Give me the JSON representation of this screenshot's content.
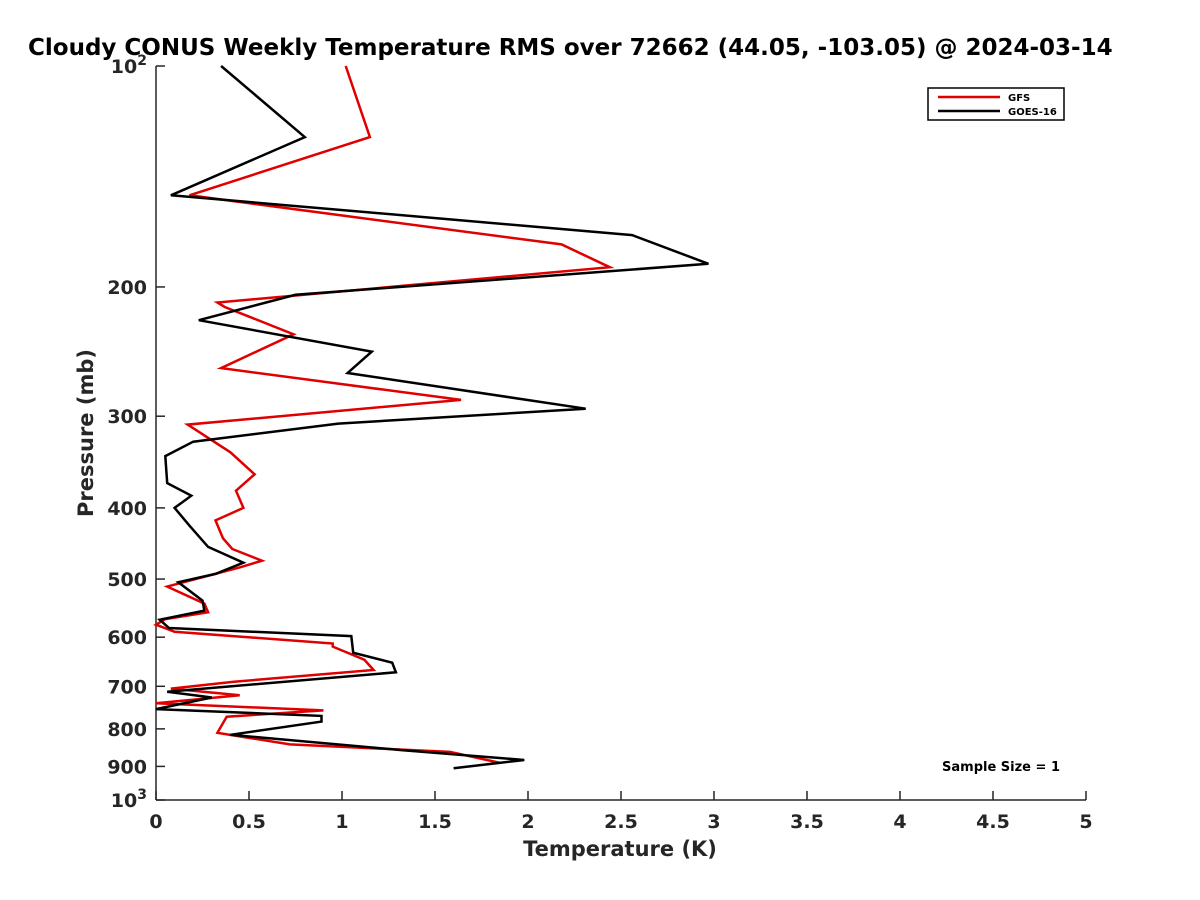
{
  "chart_data": {
    "type": "line",
    "title": "Cloudy CONUS Weekly Temperature RMS over 72662 (44.05, -103.05) @ 2024-03-14",
    "xlabel": "Temperature (K)",
    "ylabel": "Pressure (mb)",
    "xlim": [
      0,
      5
    ],
    "ylim": [
      100,
      1000
    ],
    "y_scale": "log",
    "y_direction": "reversed",
    "grid": false,
    "legend_position": "top-right",
    "x_ticks": [
      0,
      0.5,
      1,
      1.5,
      2,
      2.5,
      3,
      3.5,
      4,
      4.5,
      5
    ],
    "x_tick_labels": [
      "0",
      "0.5",
      "1",
      "1.5",
      "2",
      "2.5",
      "3",
      "3.5",
      "4",
      "4.5",
      "5"
    ],
    "y_ticks": [
      200,
      300,
      400,
      500,
      600,
      700,
      800,
      900
    ],
    "y_tick_labels": [
      "200",
      "300",
      "400",
      "500",
      "600",
      "700",
      "800",
      "900"
    ],
    "y_end_labels": {
      "top_base": "10",
      "top_exp": "2",
      "bottom_base": "10",
      "bottom_exp": "3"
    },
    "series": [
      {
        "name": "GFS",
        "color": "#e00000",
        "points": [
          [
            1.02,
            100
          ],
          [
            1.15,
            125
          ],
          [
            0.18,
            150
          ],
          [
            2.18,
            175
          ],
          [
            2.44,
            188
          ],
          [
            0.33,
            210
          ],
          [
            0.37,
            213
          ],
          [
            0.74,
            232
          ],
          [
            0.35,
            258
          ],
          [
            1.64,
            285
          ],
          [
            0.17,
            308
          ],
          [
            0.4,
            336
          ],
          [
            0.53,
            360
          ],
          [
            0.43,
            379
          ],
          [
            0.47,
            400
          ],
          [
            0.32,
            416
          ],
          [
            0.36,
            440
          ],
          [
            0.41,
            455
          ],
          [
            0.57,
            472
          ],
          [
            0.45,
            482
          ],
          [
            0.06,
            512
          ],
          [
            0.26,
            540
          ],
          [
            0.28,
            555
          ],
          [
            0.05,
            567
          ],
          [
            0.0,
            577
          ],
          [
            0.1,
            590
          ],
          [
            0.95,
            612
          ],
          [
            0.95,
            618
          ],
          [
            1.12,
            644
          ],
          [
            1.17,
            665
          ],
          [
            0.42,
            690
          ],
          [
            0.08,
            705
          ],
          [
            0.45,
            720
          ],
          [
            0.0,
            738
          ],
          [
            0.9,
            755
          ],
          [
            0.38,
            770
          ],
          [
            0.33,
            810
          ],
          [
            0.72,
            840
          ],
          [
            1.58,
            860
          ],
          [
            1.85,
            890
          ]
        ]
      },
      {
        "name": "GOES-16",
        "color": "#000000",
        "points": [
          [
            0.35,
            100
          ],
          [
            0.8,
            125
          ],
          [
            0.08,
            150
          ],
          [
            2.56,
            170
          ],
          [
            2.97,
            186
          ],
          [
            0.75,
            205
          ],
          [
            0.23,
            222
          ],
          [
            1.16,
            245
          ],
          [
            1.03,
            262
          ],
          [
            2.31,
            293
          ],
          [
            0.98,
            307
          ],
          [
            0.2,
            325
          ],
          [
            0.05,
            340
          ],
          [
            0.06,
            370
          ],
          [
            0.19,
            385
          ],
          [
            0.1,
            400
          ],
          [
            0.18,
            423
          ],
          [
            0.28,
            452
          ],
          [
            0.47,
            475
          ],
          [
            0.32,
            492
          ],
          [
            0.12,
            505
          ],
          [
            0.25,
            535
          ],
          [
            0.26,
            552
          ],
          [
            0.02,
            568
          ],
          [
            0.07,
            583
          ],
          [
            1.05,
            598
          ],
          [
            1.06,
            630
          ],
          [
            1.27,
            650
          ],
          [
            1.29,
            670
          ],
          [
            0.06,
            712
          ],
          [
            0.3,
            725
          ],
          [
            0.0,
            752
          ],
          [
            0.89,
            768
          ],
          [
            0.89,
            782
          ],
          [
            0.4,
            815
          ],
          [
            1.32,
            855
          ],
          [
            1.98,
            882
          ],
          [
            1.6,
            905
          ]
        ]
      }
    ],
    "annotation": "Sample Size = 1"
  }
}
